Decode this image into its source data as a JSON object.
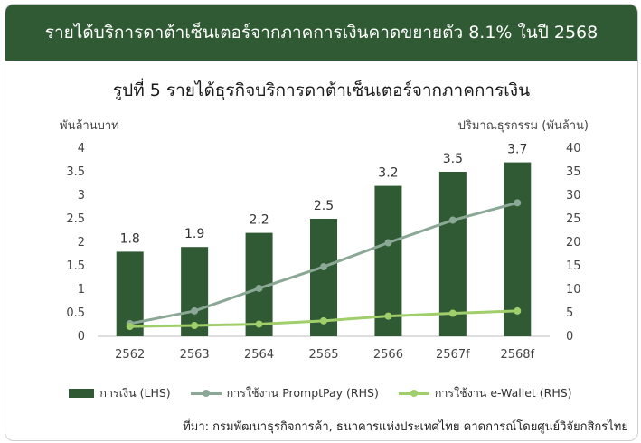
{
  "banner": "รายได้บริการดาต้าเซ็นเตอร์จากภาคการเงินคาดขยายตัว 8.1% ในปี 2568",
  "chart_data": {
    "type": "bar",
    "title": "รูปที่ 5 รายได้ธุรกิจบริการดาต้าเซ็นเตอร์จากภาคการเงิน",
    "ylabel": "พันล้านบาท",
    "y2label": "ปริมาณธุรกรรม (พันล้าน)",
    "categories": [
      "2562",
      "2563",
      "2564",
      "2565",
      "2566",
      "2567f",
      "2568f"
    ],
    "ylim": [
      0,
      4
    ],
    "y2lim": [
      0,
      40
    ],
    "yticks": [
      "0",
      "0.5",
      "1",
      "1.5",
      "2",
      "2.5",
      "3",
      "3.5",
      "4"
    ],
    "y2ticks": [
      "0",
      "5",
      "10",
      "15",
      "20",
      "25",
      "30",
      "35",
      "40"
    ],
    "grid": false,
    "legend_position": "bottom",
    "series": [
      {
        "name": "การเงิน (LHS)",
        "type": "bar",
        "axis": "left",
        "color": "#2f5a33",
        "values": [
          1.8,
          1.9,
          2.2,
          2.5,
          3.2,
          3.5,
          3.7
        ],
        "labels": [
          "1.8",
          "1.9",
          "2.2",
          "2.5",
          "3.2",
          "3.5",
          "3.7"
        ]
      },
      {
        "name": "การใช้งาน PromptPay (RHS)",
        "type": "line",
        "axis": "right",
        "color": "#8aa895",
        "values": [
          2.7,
          5.4,
          10.2,
          14.8,
          19.9,
          24.7,
          28.4
        ]
      },
      {
        "name": "การใช้งาน e-Wallet (RHS)",
        "type": "line",
        "axis": "right",
        "color": "#9fce6a",
        "values": [
          2.1,
          2.3,
          2.6,
          3.3,
          4.3,
          4.9,
          5.4
        ]
      }
    ]
  },
  "source": "ที่มา: กรมพัฒนาธุรกิจการค้า, ธนาคารแห่งประเทศไทย คาดการณ์โดยศูนย์วิจัยกสิกรไทย"
}
